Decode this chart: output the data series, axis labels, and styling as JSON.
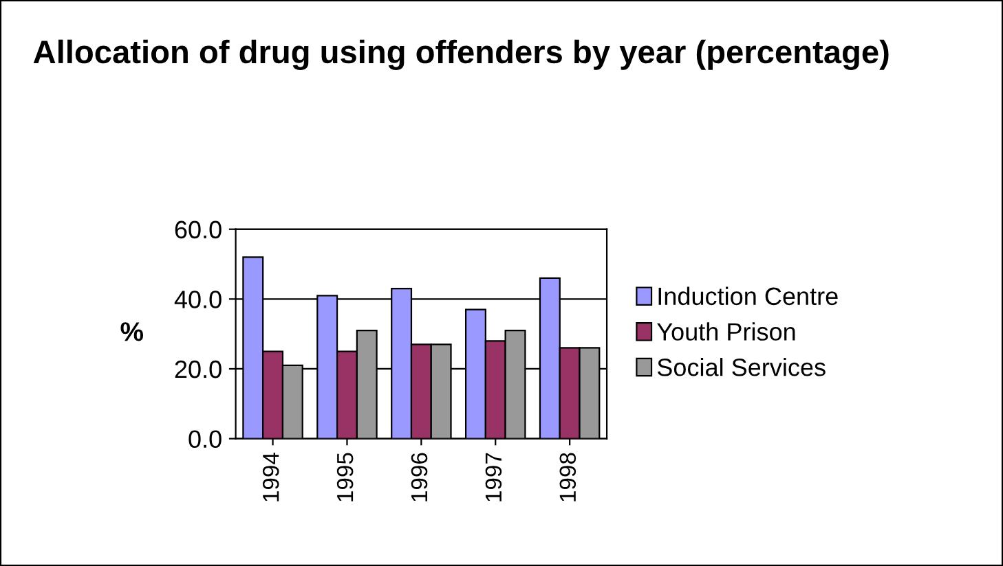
{
  "chart_data": {
    "type": "bar",
    "title": "Allocation of drug using offenders by year (percentage)",
    "ylabel": "%",
    "categories": [
      "1994",
      "1995",
      "1996",
      "1997",
      "1998"
    ],
    "series": [
      {
        "name": "Induction Centre",
        "color": "#9999ff",
        "values": [
          52,
          41,
          43,
          37,
          46
        ]
      },
      {
        "name": "Youth Prison",
        "color": "#993366",
        "values": [
          25,
          25,
          27,
          28,
          26
        ]
      },
      {
        "name": "Social Services",
        "color": "#999999",
        "values": [
          21,
          31,
          27,
          31,
          26
        ]
      }
    ],
    "ylim": [
      0,
      60
    ],
    "yticks": [
      {
        "value": 0,
        "label": "0.0"
      },
      {
        "value": 20,
        "label": "20.0"
      },
      {
        "value": 40,
        "label": "40.0"
      },
      {
        "value": 60,
        "label": "60.0"
      }
    ],
    "grid": "y",
    "legend": "right"
  }
}
